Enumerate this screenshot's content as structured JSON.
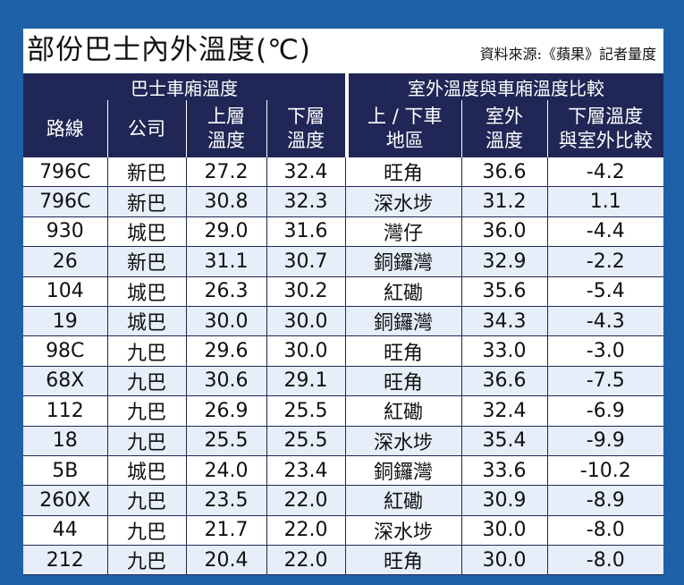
{
  "title": "部份巴士內外溫度(℃)",
  "source": "資料來源:《蘋果》記者量度",
  "groups": {
    "bus": "巴士車廂溫度",
    "compare": "室外溫度與車廂溫度比較"
  },
  "headers": {
    "route": "路線",
    "company": "公司",
    "upper": [
      "上層",
      "溫度"
    ],
    "lower": [
      "下層",
      "溫度"
    ],
    "area": [
      "上 / 下車",
      "地區"
    ],
    "outdoor": [
      "室外",
      "溫度"
    ],
    "diff": [
      "下層溫度",
      "與室外比較"
    ]
  },
  "rows": [
    {
      "route": "796C",
      "company": "新巴",
      "upper": "27.2",
      "lower": "32.4",
      "area": "旺角",
      "outdoor": "36.6",
      "diff": "-4.2"
    },
    {
      "route": "796C",
      "company": "新巴",
      "upper": "30.8",
      "lower": "32.3",
      "area": "深水埗",
      "outdoor": "31.2",
      "diff": "1.1"
    },
    {
      "route": "930",
      "company": "城巴",
      "upper": "29.0",
      "lower": "31.6",
      "area": "灣仔",
      "outdoor": "36.0",
      "diff": "-4.4"
    },
    {
      "route": "26",
      "company": "新巴",
      "upper": "31.1",
      "lower": "30.7",
      "area": "銅鑼灣",
      "outdoor": "32.9",
      "diff": "-2.2"
    },
    {
      "route": "104",
      "company": "城巴",
      "upper": "26.3",
      "lower": "30.2",
      "area": "紅磡",
      "outdoor": "35.6",
      "diff": "-5.4"
    },
    {
      "route": "19",
      "company": "城巴",
      "upper": "30.0",
      "lower": "30.0",
      "area": "銅鑼灣",
      "outdoor": "34.3",
      "diff": "-4.3"
    },
    {
      "route": "98C",
      "company": "九巴",
      "upper": "29.6",
      "lower": "30.0",
      "area": "旺角",
      "outdoor": "33.0",
      "diff": "-3.0"
    },
    {
      "route": "68X",
      "company": "九巴",
      "upper": "30.6",
      "lower": "29.1",
      "area": "旺角",
      "outdoor": "36.6",
      "diff": "-7.5"
    },
    {
      "route": "112",
      "company": "九巴",
      "upper": "26.9",
      "lower": "25.5",
      "area": "紅磡",
      "outdoor": "32.4",
      "diff": "-6.9"
    },
    {
      "route": "18",
      "company": "九巴",
      "upper": "25.5",
      "lower": "25.5",
      "area": "深水埗",
      "outdoor": "35.4",
      "diff": "-9.9"
    },
    {
      "route": "5B",
      "company": "城巴",
      "upper": "24.0",
      "lower": "23.4",
      "area": "銅鑼灣",
      "outdoor": "33.6",
      "diff": "-10.2"
    },
    {
      "route": "260X",
      "company": "九巴",
      "upper": "23.5",
      "lower": "22.0",
      "area": "紅磡",
      "outdoor": "30.9",
      "diff": "-8.9"
    },
    {
      "route": "44",
      "company": "九巴",
      "upper": "21.7",
      "lower": "22.0",
      "area": "深水埗",
      "outdoor": "30.0",
      "diff": "-8.0"
    },
    {
      "route": "212",
      "company": "九巴",
      "upper": "20.4",
      "lower": "22.0",
      "area": "旺角",
      "outdoor": "30.0",
      "diff": "-8.0"
    }
  ]
}
